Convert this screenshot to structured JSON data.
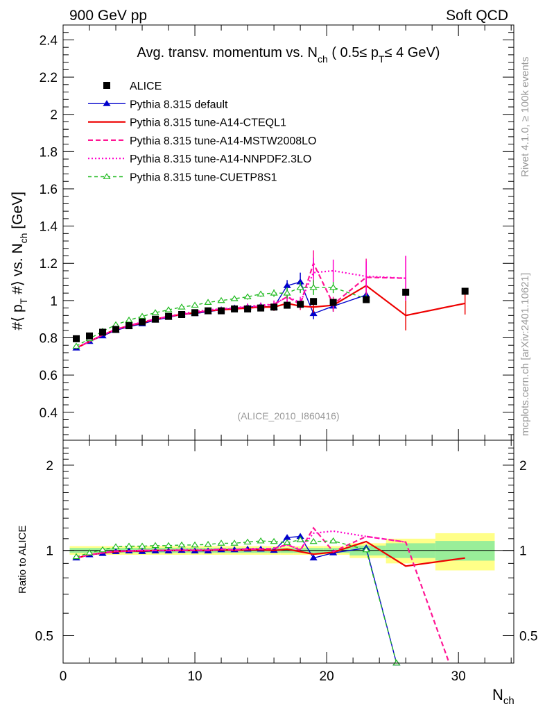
{
  "header": {
    "energy": "900 GeV pp",
    "category": "Soft QCD",
    "title_main": "Avg. transv. momentum vs. N",
    "title_sub1": "ch",
    "title_mid": " ( 0.5≤ p",
    "title_sub2": "T",
    "title_end": "≤ 4 GeV)",
    "side_rivet": "Rivet 4.1.0, ≥ 100k events",
    "side_mcplots": "mcplots.cern.ch [arXiv:2401.10621]",
    "analysis": "(ALICE_2010_I860416)"
  },
  "axes": {
    "ylabel": "#⟨ p",
    "ylabel_sub1": "T",
    "ylabel_mid": " #⟩ vs. N",
    "ylabel_sub2": "ch",
    "ylabel_end": " [GeV]",
    "ratio_ylabel": "Ratio to ALICE",
    "xlabel": "N",
    "xlabel_sub": "ch"
  },
  "chart_data": {
    "type": "line",
    "xlim": [
      0,
      34.2
    ],
    "ylim": [
      0.25,
      2.48
    ],
    "ratio_ylim": [
      0.4,
      2.45
    ],
    "x_ticks": [
      0,
      10,
      20,
      30
    ],
    "y_ticks": [
      0.4,
      0.6,
      0.8,
      1,
      1.2,
      1.4,
      1.6,
      1.8,
      2,
      2.2,
      2.4
    ],
    "y_tick_labels": [
      "0.4",
      "0.6",
      "0.8",
      "1",
      "1.2",
      "1.4",
      "1.6",
      "1.8",
      "2",
      "2.2",
      "2.4"
    ],
    "ratio_ticks": [
      0.5,
      1,
      2
    ],
    "ratio_tick_labels": [
      "0.5",
      "1",
      "2"
    ],
    "data": {
      "name": "ALICE",
      "x": [
        1,
        2,
        3,
        4,
        5,
        6,
        7,
        8,
        9,
        10,
        11,
        12,
        13,
        14,
        15,
        16,
        17,
        18,
        19,
        20.5,
        23,
        26,
        30.5
      ],
      "y": [
        0.795,
        0.81,
        0.83,
        0.845,
        0.865,
        0.885,
        0.9,
        0.915,
        0.925,
        0.935,
        0.945,
        0.945,
        0.955,
        0.955,
        0.96,
        0.965,
        0.975,
        0.98,
        0.995,
        0.99,
        1.005,
        1.045,
        1.05
      ],
      "band_inner": [
        0.02,
        0.02,
        0.02,
        0.02,
        0.02,
        0.02,
        0.02,
        0.02,
        0.02,
        0.02,
        0.02,
        0.02,
        0.02,
        0.02,
        0.02,
        0.02,
        0.02,
        0.02,
        0.02,
        0.02,
        0.04,
        0.06,
        0.08
      ],
      "band_outer": [
        0.035,
        0.035,
        0.035,
        0.035,
        0.035,
        0.035,
        0.035,
        0.035,
        0.035,
        0.035,
        0.035,
        0.035,
        0.035,
        0.035,
        0.035,
        0.035,
        0.035,
        0.035,
        0.035,
        0.035,
        0.06,
        0.1,
        0.15
      ]
    },
    "series": [
      {
        "name": "Pythia 8.315 default",
        "color": "#0000cc",
        "dash": "",
        "marker": "triangle-filled",
        "x": [
          1,
          2,
          3,
          4,
          5,
          6,
          7,
          8,
          9,
          10,
          11,
          12,
          13,
          14,
          15,
          16,
          17,
          18,
          19,
          20.5,
          23
        ],
        "y": [
          0.745,
          0.78,
          0.81,
          0.84,
          0.86,
          0.875,
          0.895,
          0.91,
          0.925,
          0.93,
          0.94,
          0.95,
          0.96,
          0.965,
          0.97,
          0.965,
          1.08,
          1.1,
          0.93,
          0.97,
          1.03
        ],
        "err": [
          0.005,
          0.005,
          0.005,
          0.005,
          0.005,
          0.005,
          0.005,
          0.005,
          0.005,
          0.005,
          0.01,
          0.01,
          0.01,
          0.01,
          0.015,
          0.02,
          0.03,
          0.05,
          0.03,
          0.03,
          0.02
        ],
        "ratio_x": [
          1,
          2,
          3,
          4,
          5,
          6,
          7,
          8,
          9,
          10,
          11,
          12,
          13,
          14,
          15,
          16,
          17,
          18,
          19,
          20.5,
          23,
          25.3
        ],
        "ratio_y": [
          0.94,
          0.965,
          0.975,
          0.99,
          0.995,
          0.99,
          0.995,
          0.995,
          1.0,
          0.995,
          0.995,
          1.005,
          1.005,
          1.01,
          1.01,
          1.0,
          1.11,
          1.12,
          0.94,
          0.98,
          1.02,
          0.4
        ]
      },
      {
        "name": "Pythia 8.315 tune-A14-CTEQL1",
        "color": "#ee0000",
        "dash": "",
        "marker": "none",
        "x": [
          1,
          2,
          3,
          4,
          5,
          6,
          7,
          8,
          9,
          10,
          11,
          12,
          13,
          14,
          15,
          16,
          17,
          18,
          19,
          20.5,
          23,
          26,
          30.5
        ],
        "y": [
          0.745,
          0.78,
          0.815,
          0.845,
          0.865,
          0.88,
          0.9,
          0.915,
          0.925,
          0.935,
          0.945,
          0.95,
          0.955,
          0.96,
          0.965,
          0.965,
          0.985,
          0.97,
          0.965,
          0.975,
          1.08,
          0.92,
          0.985
        ],
        "err": [
          0.005,
          0.005,
          0.005,
          0.005,
          0.005,
          0.005,
          0.005,
          0.005,
          0.005,
          0.005,
          0.01,
          0.01,
          0.01,
          0.015,
          0.015,
          0.02,
          0.02,
          0.02,
          0.03,
          0.03,
          0.03,
          0.08,
          0.06
        ],
        "ratio_x": [
          1,
          2,
          3,
          4,
          5,
          6,
          7,
          8,
          9,
          10,
          11,
          12,
          13,
          14,
          15,
          16,
          17,
          18,
          19,
          20.5,
          23,
          26,
          30.5
        ],
        "ratio_y": [
          0.94,
          0.965,
          0.98,
          0.99,
          0.995,
          0.995,
          1.0,
          1.0,
          1.0,
          1.0,
          1.0,
          1.005,
          1.0,
          1.005,
          1.005,
          1.0,
          1.01,
          0.99,
          0.97,
          0.985,
          1.075,
          0.88,
          0.94
        ]
      },
      {
        "name": "Pythia 8.315 tune-A14-MSTW2008LO",
        "color": "#ff1493",
        "dash": "7,4",
        "marker": "none",
        "x": [
          1,
          2,
          3,
          4,
          5,
          6,
          7,
          8,
          9,
          10,
          11,
          12,
          13,
          14,
          15,
          16,
          17,
          18,
          19,
          20.5,
          23,
          26
        ],
        "y": [
          0.745,
          0.78,
          0.815,
          0.845,
          0.865,
          0.885,
          0.9,
          0.915,
          0.925,
          0.935,
          0.945,
          0.955,
          0.96,
          0.965,
          0.97,
          0.98,
          1.02,
          0.98,
          1.2,
          0.98,
          1.125,
          1.12
        ],
        "err": [
          0.005,
          0.005,
          0.005,
          0.005,
          0.005,
          0.005,
          0.005,
          0.005,
          0.005,
          0.01,
          0.01,
          0.01,
          0.01,
          0.015,
          0.015,
          0.02,
          0.03,
          0.03,
          0.07,
          0.04,
          0.1,
          0.12
        ],
        "ratio_x": [
          1,
          2,
          3,
          4,
          5,
          6,
          7,
          8,
          9,
          10,
          11,
          12,
          13,
          14,
          15,
          16,
          17,
          18,
          19,
          20.5,
          23,
          26,
          29.3
        ],
        "ratio_y": [
          0.94,
          0.965,
          0.98,
          0.995,
          0.995,
          1.0,
          1.0,
          1.0,
          1.0,
          1.0,
          1.0,
          1.01,
          1.005,
          1.01,
          1.01,
          1.015,
          1.05,
          1.0,
          1.2,
          0.99,
          1.12,
          1.07,
          0.4
        ]
      },
      {
        "name": "Pythia 8.315 tune-A14-NNPDF2.3LO",
        "color": "#ff00cc",
        "dash": "2,3",
        "marker": "none",
        "x": [
          1,
          2,
          3,
          4,
          5,
          6,
          7,
          8,
          9,
          10,
          11,
          12,
          13,
          14,
          15,
          16,
          17,
          18,
          19,
          20.5,
          23,
          26
        ],
        "y": [
          0.745,
          0.78,
          0.815,
          0.845,
          0.865,
          0.885,
          0.9,
          0.915,
          0.93,
          0.94,
          0.95,
          0.955,
          0.96,
          0.97,
          0.975,
          0.98,
          1.02,
          0.99,
          1.15,
          1.16,
          1.13,
          1.12
        ],
        "err": [
          0.005,
          0.005,
          0.005,
          0.005,
          0.005,
          0.005,
          0.005,
          0.005,
          0.005,
          0.01,
          0.01,
          0.01,
          0.01,
          0.015,
          0.015,
          0.02,
          0.03,
          0.03,
          0.08,
          0.06,
          0.08,
          0.12
        ],
        "ratio_x": [
          1,
          2,
          3,
          4,
          5,
          6,
          7,
          8,
          9,
          10,
          11,
          12,
          13,
          14,
          15,
          16,
          17,
          18,
          19,
          20.5,
          23,
          26
        ],
        "ratio_y": [
          0.94,
          0.965,
          0.98,
          0.995,
          0.995,
          1.0,
          1.0,
          1.0,
          1.005,
          1.005,
          1.005,
          1.01,
          1.005,
          1.015,
          1.015,
          1.015,
          1.045,
          1.01,
          1.15,
          1.17,
          1.12,
          1.07
        ]
      },
      {
        "name": "Pythia 8.315 tune-CUETP8S1",
        "color": "#22bb22",
        "dash": "5,4",
        "marker": "triangle-open",
        "x": [
          1,
          2,
          3,
          4,
          5,
          6,
          7,
          8,
          9,
          10,
          11,
          12,
          13,
          14,
          15,
          16,
          17,
          18,
          19,
          20.5,
          23
        ],
        "y": [
          0.755,
          0.795,
          0.835,
          0.87,
          0.895,
          0.915,
          0.935,
          0.95,
          0.965,
          0.975,
          0.99,
          1.0,
          1.01,
          1.02,
          1.035,
          1.04,
          1.04,
          1.07,
          1.07,
          1.07,
          1.01
        ],
        "err": [
          0.005,
          0.005,
          0.005,
          0.005,
          0.005,
          0.005,
          0.005,
          0.005,
          0.005,
          0.01,
          0.01,
          0.01,
          0.01,
          0.015,
          0.015,
          0.02,
          0.03,
          0.03,
          0.04,
          0.03,
          0.02
        ],
        "ratio_x": [
          1,
          2,
          3,
          4,
          5,
          6,
          7,
          8,
          9,
          10,
          11,
          12,
          13,
          14,
          15,
          16,
          17,
          18,
          19,
          20.5,
          23,
          25.3
        ],
        "ratio_y": [
          0.95,
          0.98,
          1.005,
          1.03,
          1.035,
          1.035,
          1.04,
          1.04,
          1.045,
          1.045,
          1.05,
          1.06,
          1.06,
          1.07,
          1.08,
          1.075,
          1.065,
          1.09,
          1.075,
          1.08,
          1.005,
          0.4
        ]
      }
    ]
  }
}
